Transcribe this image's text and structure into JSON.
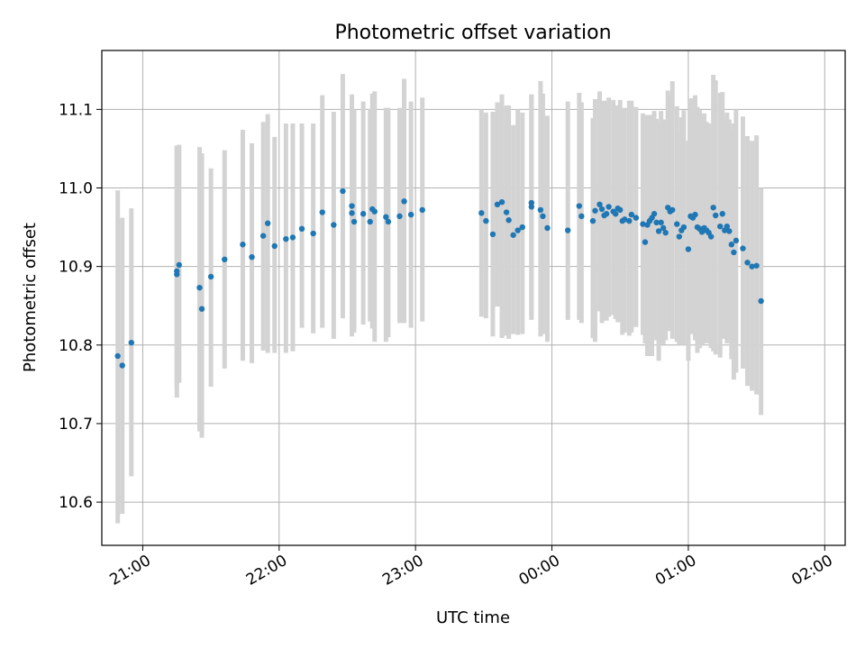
{
  "chart_data": {
    "type": "scatter",
    "title": "Photometric offset variation",
    "xlabel": "UTC time",
    "ylabel": "Photometric offset",
    "x_tick_labels": [
      "21:00",
      "22:00",
      "23:00",
      "00:00",
      "01:00",
      "02:00"
    ],
    "y_tick_labels": [
      "10.6",
      "10.7",
      "10.8",
      "10.9",
      "11.0",
      "11.1"
    ],
    "y_ticks": [
      10.6,
      10.7,
      10.8,
      10.9,
      11.0,
      11.1
    ],
    "xlim": [
      "20:42",
      "02:09"
    ],
    "ylim": [
      10.545,
      11.175
    ],
    "grid": true,
    "colors": {
      "point": "#1f77b4",
      "errorbar": "#d3d3d3",
      "grid": "#b0b0b0"
    },
    "series": [
      {
        "x": [
          "20:49",
          "20:51",
          "20:55",
          "21:15",
          "21:15",
          "21:16",
          "21:25",
          "21:26",
          "21:30",
          "21:36",
          "21:44",
          "21:48",
          "21:53",
          "21:55",
          "21:58",
          "22:03",
          "22:06",
          "22:10",
          "22:15",
          "22:19",
          "22:24",
          "22:28",
          "22:32",
          "22:32",
          "22:33",
          "22:37",
          "22:40",
          "22:41",
          "22:42",
          "22:47",
          "22:48",
          "22:53",
          "22:55",
          "22:58"
        ],
        "y": [
          10.786,
          10.774,
          10.803,
          10.894,
          10.89,
          10.902,
          10.873,
          10.846,
          10.887,
          10.909,
          10.928,
          10.912,
          10.939,
          10.955,
          10.926,
          10.935,
          10.937,
          10.948,
          10.942,
          10.969,
          10.953,
          10.996,
          10.977,
          10.968,
          10.957,
          10.967,
          10.957,
          10.973,
          10.97,
          10.963,
          10.957,
          10.964,
          10.983,
          10.966
        ],
        "err_low": [
          10.573,
          10.585,
          10.633,
          10.733,
          10.748,
          10.752,
          10.69,
          10.682,
          10.747,
          10.77,
          10.78,
          10.777,
          10.793,
          10.79,
          10.79,
          10.79,
          10.792,
          10.822,
          10.815,
          10.822,
          10.808,
          10.834,
          10.826,
          10.811,
          10.816,
          10.826,
          10.83,
          10.821,
          10.804,
          10.804,
          10.81,
          10.828,
          10.828,
          10.822
        ],
        "err_high": [
          10.997,
          10.962,
          10.974,
          11.054,
          11.053,
          11.055,
          11.052,
          11.044,
          11.025,
          11.048,
          11.074,
          11.057,
          11.084,
          11.094,
          11.065,
          11.082,
          11.082,
          11.082,
          11.082,
          11.118,
          11.097,
          11.145,
          11.118,
          11.119,
          11.1,
          11.11,
          11.101,
          11.12,
          11.123,
          11.102,
          11.102,
          11.102,
          11.139,
          11.11
        ]
      },
      {
        "x": [
          "23:03",
          "23:29",
          "23:31",
          "23:34",
          "23:36",
          "23:38",
          "23:40",
          "23:41",
          "23:43",
          "23:45",
          "23:47",
          "23:51",
          "23:51",
          "23:55",
          "23:56",
          "23:58",
          "24:07",
          "24:12",
          "24:13",
          "24:18",
          "24:19",
          "24:21",
          "24:22",
          "24:23",
          "24:24",
          "24:25",
          "24:27",
          "24:28",
          "24:29",
          "24:30",
          "24:31",
          "24:32",
          "24:34",
          "24:35",
          "24:37",
          "24:40",
          "24:41",
          "24:42",
          "24:43",
          "24:44",
          "24:45",
          "24:46",
          "24:47",
          "24:48",
          "24:49",
          "24:50",
          "24:51",
          "24:52",
          "24:53",
          "24:55",
          "24:56",
          "24:57",
          "24:58",
          "25:00",
          "25:01",
          "25:02",
          "25:03",
          "25:04",
          "25:05",
          "25:06",
          "25:07",
          "25:08",
          "25:09",
          "25:10",
          "25:11",
          "25:12",
          "25:14",
          "25:15",
          "25:16",
          "25:17",
          "25:18",
          "25:19",
          "25:20",
          "25:21",
          "25:24",
          "25:26",
          "25:28",
          "25:30",
          "25:32"
        ],
        "y": [
          10.972,
          10.968,
          10.958,
          10.941,
          10.979,
          10.982,
          10.969,
          10.959,
          10.94,
          10.946,
          10.95,
          10.981,
          10.976,
          10.972,
          10.964,
          10.949,
          10.946,
          10.977,
          10.964,
          10.958,
          10.971,
          10.979,
          10.973,
          10.965,
          10.967,
          10.976,
          10.97,
          10.967,
          10.974,
          10.972,
          10.958,
          10.96,
          10.958,
          10.966,
          10.962,
          10.954,
          10.931,
          10.953,
          10.958,
          10.962,
          10.967,
          10.956,
          10.945,
          10.956,
          10.949,
          10.943,
          10.975,
          10.97,
          10.972,
          10.954,
          10.938,
          10.946,
          10.95,
          10.922,
          10.964,
          10.962,
          10.966,
          10.95,
          10.948,
          10.944,
          10.949,
          10.946,
          10.943,
          10.938,
          10.975,
          10.965,
          10.951,
          10.967,
          10.946,
          10.951,
          10.945,
          10.928,
          10.918,
          10.933,
          10.923,
          10.905,
          10.9,
          10.901,
          10.856
        ],
        "err_low": [
          10.83,
          10.836,
          10.834,
          10.811,
          10.849,
          10.809,
          10.812,
          10.808,
          10.814,
          10.813,
          10.814,
          10.836,
          10.832,
          10.811,
          10.814,
          10.804,
          10.832,
          10.832,
          10.828,
          10.809,
          10.804,
          10.843,
          10.828,
          10.832,
          10.831,
          10.836,
          10.838,
          10.833,
          10.829,
          10.83,
          10.813,
          10.816,
          10.812,
          10.816,
          10.823,
          10.813,
          10.802,
          10.786,
          10.808,
          10.786,
          10.813,
          10.806,
          10.78,
          10.803,
          10.801,
          10.806,
          10.818,
          10.818,
          10.808,
          10.804,
          10.8,
          10.802,
          10.8,
          10.78,
          10.814,
          10.816,
          10.806,
          10.79,
          10.796,
          10.8,
          10.802,
          10.808,
          10.802,
          10.796,
          10.792,
          10.788,
          10.784,
          10.81,
          10.808,
          10.802,
          10.806,
          10.782,
          10.756,
          10.765,
          10.77,
          10.748,
          10.742,
          10.737,
          10.711
        ],
        "err_high": [
          11.115,
          11.1,
          11.096,
          11.097,
          11.109,
          11.119,
          11.105,
          11.105,
          11.08,
          11.1,
          11.096,
          11.119,
          11.119,
          11.136,
          11.12,
          11.092,
          11.11,
          11.121,
          11.109,
          11.089,
          11.113,
          11.123,
          11.111,
          11.11,
          11.111,
          11.115,
          11.112,
          11.105,
          11.104,
          11.112,
          11.101,
          11.102,
          11.111,
          11.111,
          11.103,
          11.095,
          11.093,
          11.091,
          11.093,
          11.092,
          11.098,
          11.088,
          11.082,
          11.098,
          11.087,
          11.087,
          11.124,
          11.118,
          11.136,
          11.104,
          11.069,
          11.09,
          11.099,
          11.06,
          11.114,
          11.114,
          11.118,
          11.103,
          11.099,
          11.091,
          11.095,
          11.084,
          11.082,
          11.076,
          11.144,
          11.137,
          11.121,
          11.122,
          11.088,
          11.096,
          11.087,
          11.073,
          11.082,
          11.1,
          11.091,
          11.066,
          11.06,
          11.067,
          11.0
        ]
      }
    ]
  }
}
